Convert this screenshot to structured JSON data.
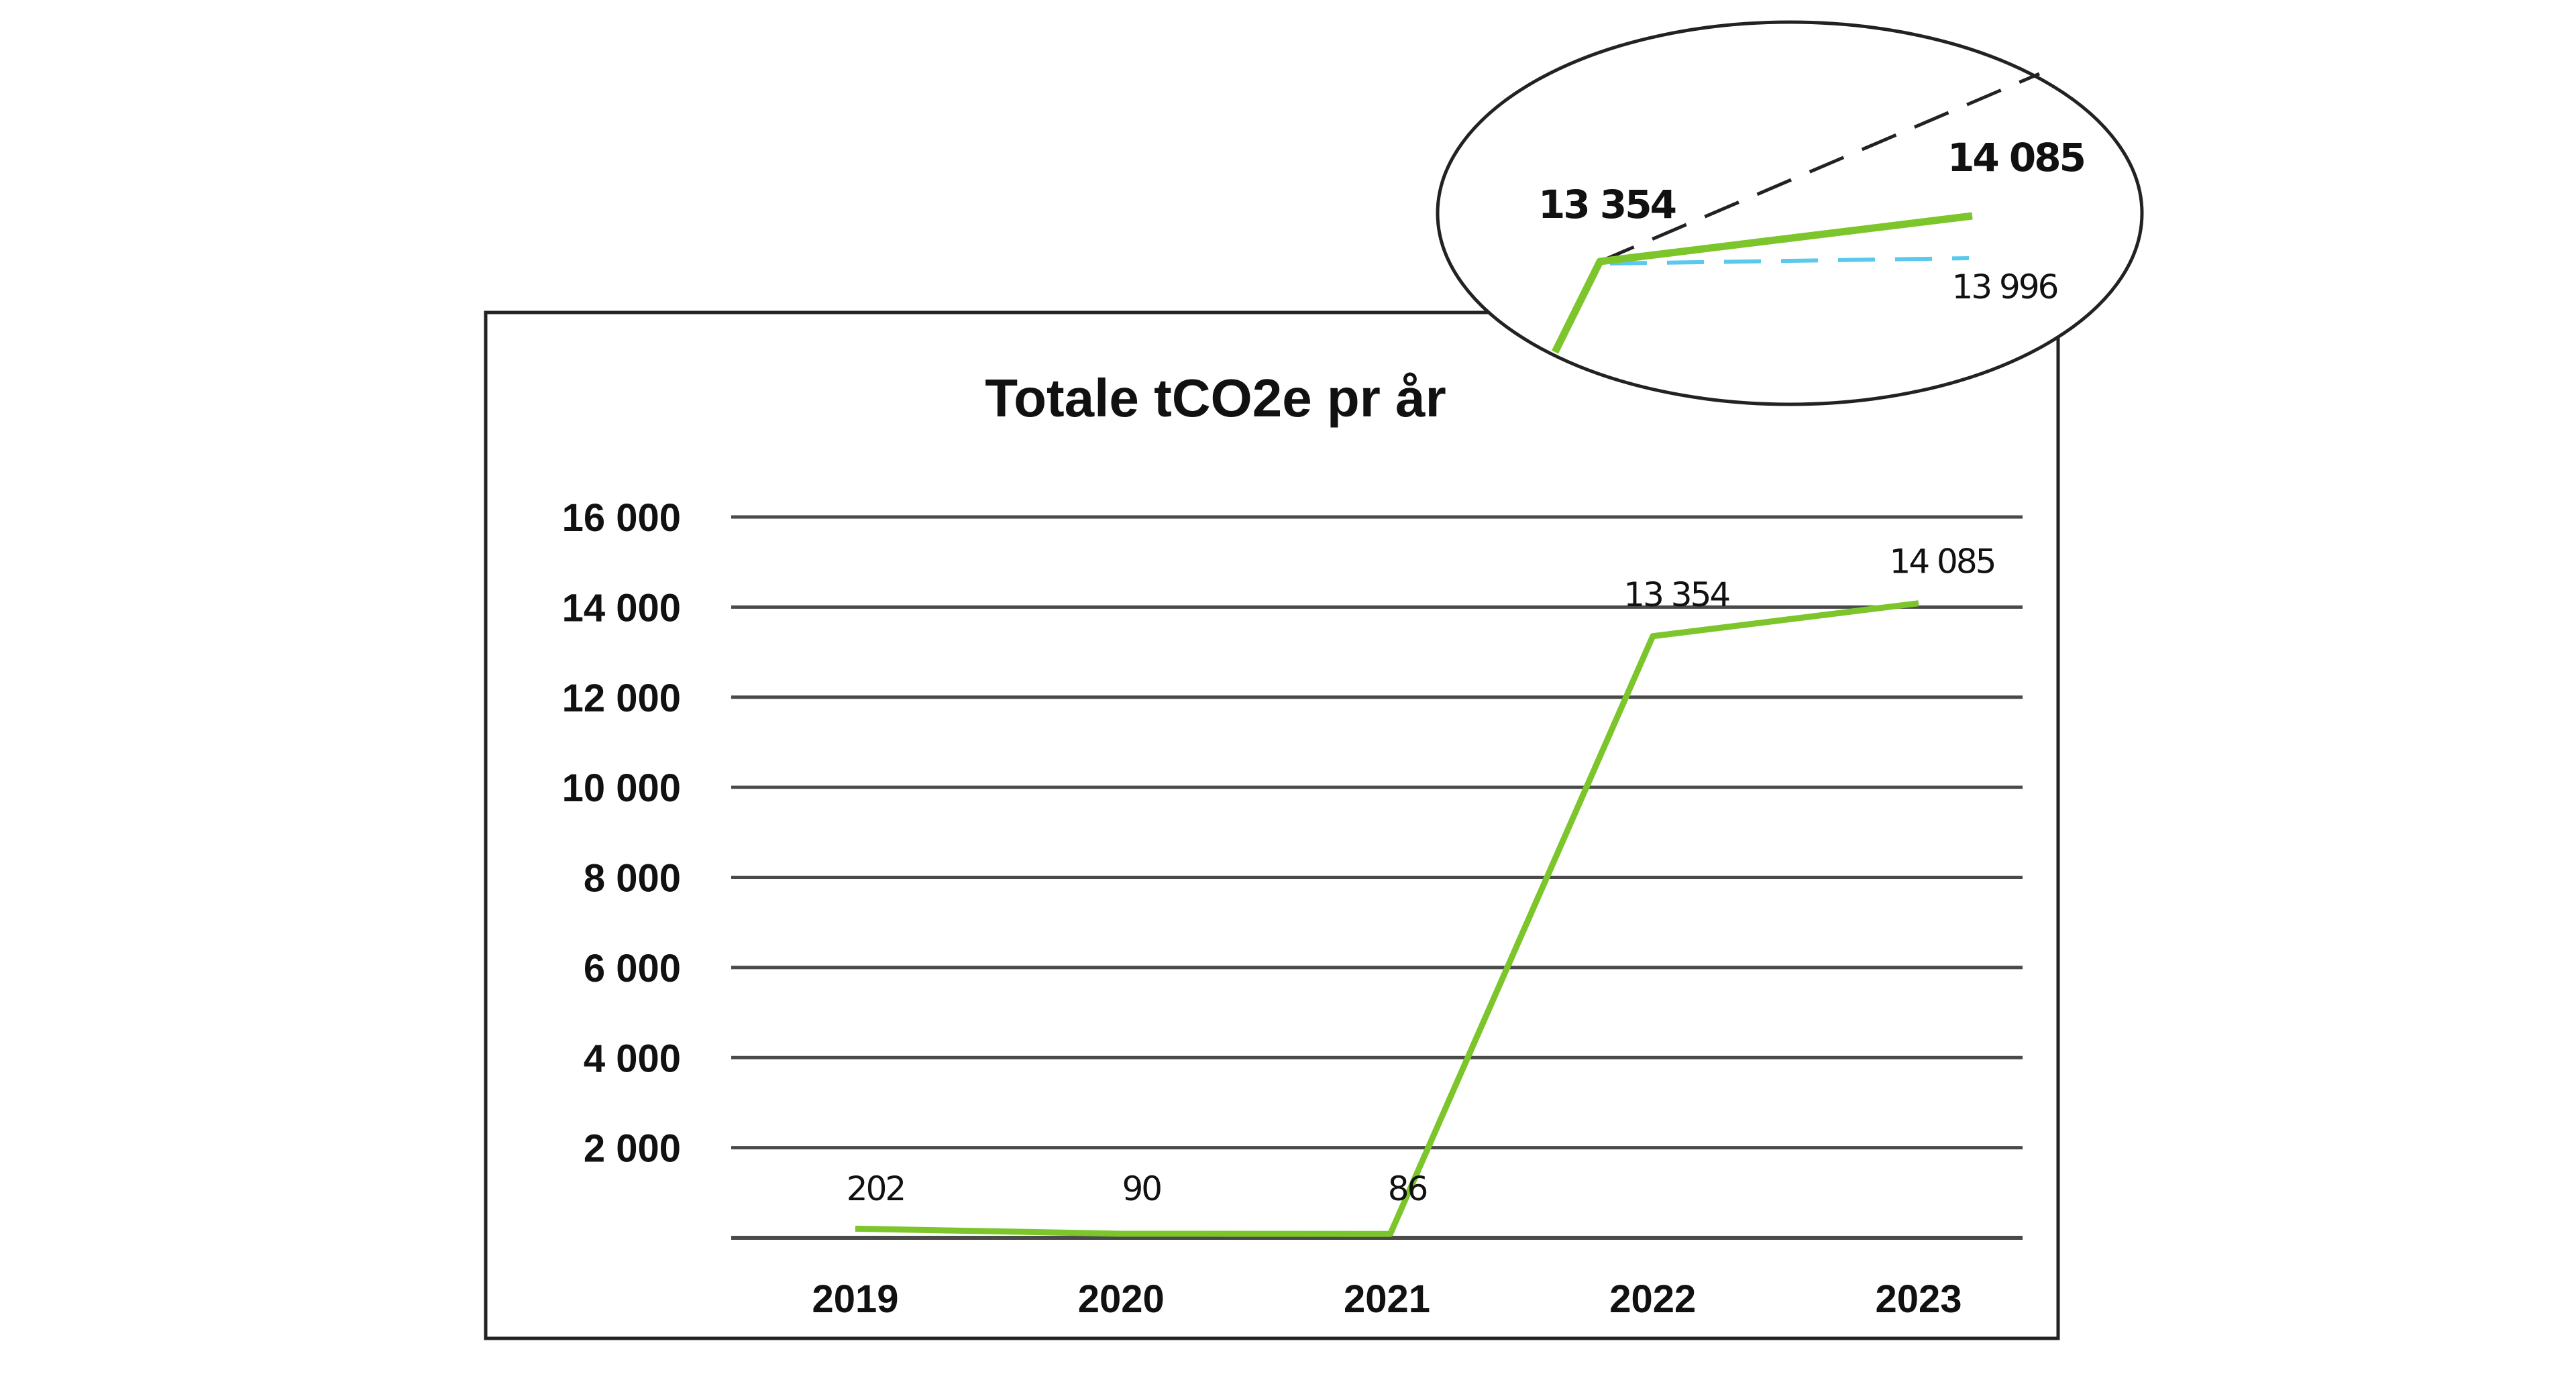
{
  "chart_data": {
    "type": "line",
    "title": "Totale tCO2e pr år",
    "categories": [
      "2019",
      "2020",
      "2021",
      "2022",
      "2023"
    ],
    "series": [
      {
        "values": [
          202,
          90,
          86,
          13354,
          14085
        ],
        "color": "#7cc52a"
      }
    ],
    "data_labels": [
      "202",
      "90",
      "86",
      "13 354",
      "14 085"
    ],
    "y_ticks": [
      2000,
      4000,
      6000,
      8000,
      10000,
      12000,
      14000,
      16000
    ],
    "y_tick_labels": [
      "2 000",
      "4 000",
      "6 000",
      "8 000",
      "10 000",
      "12 000",
      "14 000",
      "16 000"
    ],
    "ylim": [
      0,
      16000
    ],
    "grid": true,
    "xlabel": "",
    "ylabel": "",
    "inset": {
      "labels": [
        "13 354",
        "14 085",
        "13 996"
      ],
      "colors": {
        "line": "#7cc52a",
        "projection": "#222222",
        "alternative": "#5bc8ee"
      }
    }
  }
}
